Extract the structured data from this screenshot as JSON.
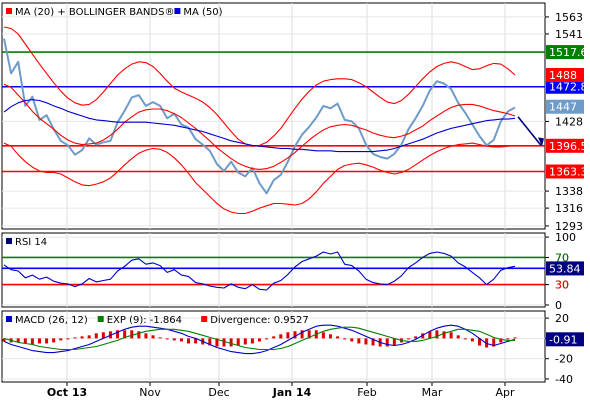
{
  "chart_data": [
    {
      "type": "line",
      "panel": "price",
      "legend": [
        {
          "label": "MA (20) + BOLLINGER BANDS®",
          "color": "#ff0000"
        },
        {
          "label": "MA (50)",
          "color": "#0000cc"
        }
      ],
      "y_ticks": [
        1563,
        1541,
        1428,
        1338,
        1316,
        1293
      ],
      "ylim": [
        1289,
        1581
      ],
      "series": [
        {
          "role": "price",
          "color": "#6e9bc8",
          "values": [
            1535,
            1490,
            1505,
            1448,
            1460,
            1430,
            1436,
            1418,
            1403,
            1397,
            1385,
            1391,
            1406,
            1398,
            1401,
            1403,
            1427,
            1442,
            1459,
            1462,
            1448,
            1453,
            1448,
            1432,
            1438,
            1424,
            1420,
            1405,
            1398,
            1390,
            1373,
            1364,
            1376,
            1362,
            1357,
            1368,
            1348,
            1335,
            1352,
            1359,
            1376,
            1396,
            1411,
            1421,
            1433,
            1448,
            1445,
            1451,
            1430,
            1428,
            1419,
            1398,
            1386,
            1382,
            1380,
            1386,
            1398,
            1418,
            1432,
            1448,
            1468,
            1480,
            1477,
            1470,
            1452,
            1439,
            1424,
            1409,
            1397,
            1404,
            1428,
            1441,
            1446
          ]
        },
        {
          "role": "ma20",
          "color": "#ff0000",
          "values": [
            1476,
            1472,
            1462,
            1452,
            1441,
            1432,
            1425,
            1418,
            1410,
            1404,
            1400,
            1398,
            1399,
            1400,
            1404,
            1410,
            1418,
            1427,
            1434,
            1440,
            1443,
            1444,
            1444,
            1442,
            1438,
            1433,
            1426,
            1419,
            1411,
            1403,
            1394,
            1387,
            1380,
            1374,
            1370,
            1367,
            1366,
            1367,
            1370,
            1375,
            1381,
            1388,
            1396,
            1404,
            1411,
            1417,
            1421,
            1423,
            1424,
            1423,
            1420,
            1417,
            1413,
            1410,
            1408,
            1407,
            1409,
            1412,
            1417,
            1422,
            1429,
            1435,
            1441,
            1446,
            1449,
            1450,
            1450,
            1448,
            1445,
            1442,
            1440,
            1438,
            1435
          ]
        },
        {
          "role": "upper_band",
          "color": "#ff0000",
          "values": [
            1550,
            1548,
            1541,
            1528,
            1515,
            1502,
            1490,
            1478,
            1467,
            1458,
            1452,
            1449,
            1450,
            1456,
            1466,
            1477,
            1488,
            1496,
            1502,
            1505,
            1504,
            1499,
            1490,
            1480,
            1471,
            1466,
            1462,
            1458,
            1453,
            1446,
            1437,
            1426,
            1415,
            1405,
            1399,
            1396,
            1397,
            1401,
            1409,
            1419,
            1432,
            1445,
            1457,
            1467,
            1475,
            1480,
            1482,
            1483,
            1483,
            1482,
            1478,
            1473,
            1466,
            1459,
            1453,
            1451,
            1455,
            1463,
            1473,
            1483,
            1492,
            1499,
            1503,
            1505,
            1503,
            1499,
            1495,
            1496,
            1500,
            1503,
            1502,
            1496,
            1488
          ]
        },
        {
          "role": "lower_band",
          "color": "#ff0000",
          "values": [
            1400,
            1396,
            1385,
            1376,
            1369,
            1364,
            1362,
            1362,
            1360,
            1355,
            1350,
            1346,
            1345,
            1347,
            1350,
            1355,
            1363,
            1372,
            1380,
            1387,
            1391,
            1393,
            1392,
            1388,
            1381,
            1372,
            1361,
            1349,
            1340,
            1331,
            1322,
            1315,
            1311,
            1309,
            1309,
            1312,
            1316,
            1319,
            1322,
            1322,
            1321,
            1320,
            1322,
            1328,
            1337,
            1348,
            1357,
            1366,
            1371,
            1373,
            1374,
            1372,
            1369,
            1365,
            1362,
            1360,
            1362,
            1366,
            1372,
            1378,
            1384,
            1389,
            1393,
            1396,
            1398,
            1399,
            1400,
            1398,
            1396,
            1395,
            1395,
            1396,
            1397
          ]
        },
        {
          "role": "ma50",
          "color": "#0000cc",
          "values": [
            1440,
            1447,
            1452,
            1455,
            1456,
            1455,
            1452,
            1448,
            1445,
            1441,
            1438,
            1435,
            1432,
            1430,
            1429,
            1428,
            1427,
            1427,
            1427,
            1427,
            1427,
            1426,
            1425,
            1424,
            1423,
            1421,
            1419,
            1417,
            1415,
            1412,
            1409,
            1406,
            1403,
            1401,
            1399,
            1397,
            1396,
            1395,
            1394,
            1393,
            1393,
            1392,
            1392,
            1391,
            1390,
            1390,
            1390,
            1389,
            1389,
            1389,
            1389,
            1389,
            1389,
            1390,
            1391,
            1393,
            1396,
            1399,
            1402,
            1405,
            1409,
            1413,
            1416,
            1419,
            1421,
            1423,
            1425,
            1427,
            1429,
            1430,
            1431,
            1431,
            1432
          ]
        }
      ],
      "levels": [
        {
          "value": 1517.6,
          "label": "1517.6",
          "color": "#008000"
        },
        {
          "value": 1472.8,
          "label": "1472.8",
          "color": "#0000ff"
        },
        {
          "value": 1396.5,
          "label": "1396.5",
          "color": "#ff0000"
        },
        {
          "value": 1363.3,
          "label": "1363.3",
          "color": "#ff0000"
        }
      ],
      "tags": [
        {
          "value": 1488,
          "label": "1488",
          "color": "#ff0000"
        },
        {
          "value": 1447,
          "label": "1447",
          "color": "#6e9bc8"
        }
      ],
      "arrow": {
        "from_value": 1434,
        "to_value": 1397,
        "color": "#000080"
      }
    },
    {
      "type": "line",
      "panel": "rsi",
      "legend": [
        {
          "label": "RSI 14",
          "color": "#000080"
        }
      ],
      "y_ticks": [
        100,
        70,
        30,
        0
      ],
      "ylim": [
        -3,
        106
      ],
      "series": [
        {
          "role": "rsi",
          "color": "#0000cc",
          "values": [
            59,
            52,
            50,
            40,
            44,
            38,
            41,
            35,
            32,
            31,
            27,
            31,
            39,
            34,
            36,
            38,
            50,
            57,
            66,
            68,
            60,
            62,
            58,
            48,
            52,
            44,
            42,
            33,
            31,
            28,
            26,
            25,
            31,
            26,
            24,
            30,
            23,
            22,
            32,
            36,
            45,
            56,
            64,
            68,
            72,
            78,
            75,
            78,
            60,
            58,
            50,
            38,
            33,
            31,
            30,
            35,
            43,
            55,
            62,
            70,
            76,
            78,
            76,
            72,
            62,
            56,
            48,
            40,
            30,
            38,
            51,
            55,
            57
          ]
        }
      ],
      "levels": [
        {
          "value": 70,
          "label": "70",
          "color": "#008000"
        },
        {
          "value": 54,
          "label": "",
          "color": "#0000ff"
        },
        {
          "value": 30,
          "label": "30",
          "color": "#ff0000"
        }
      ],
      "tags": [
        {
          "value": 53.84,
          "label": "53.84",
          "color": "#000080"
        }
      ]
    },
    {
      "type": "line",
      "panel": "macd",
      "legend": [
        {
          "label": "MACD (26, 12)",
          "color": "#0000cc"
        },
        {
          "label": "EXP (9): -1.864",
          "color": "#008000"
        },
        {
          "label": "Divergence: 0.9527",
          "color": "#ff0000"
        }
      ],
      "x_labels": [
        "Oct 13",
        "Nov",
        "Dec",
        "Jan 14",
        "Feb",
        "Mar",
        "Apr"
      ],
      "y_ticks": [
        20,
        0,
        -20,
        -40
      ],
      "ylim": [
        -43,
        27
      ],
      "series": [
        {
          "role": "macd",
          "color": "#0000cc",
          "values": [
            -3,
            -6,
            -8,
            -10,
            -12,
            -13,
            -14,
            -14,
            -13,
            -12,
            -10,
            -8,
            -6,
            -3,
            0,
            3,
            6,
            9,
            11,
            12,
            12,
            11,
            10,
            9,
            7,
            5,
            2,
            0,
            -3,
            -6,
            -9,
            -11,
            -13,
            -14,
            -15,
            -15,
            -14,
            -12,
            -9,
            -6,
            -2,
            2,
            6,
            9,
            12,
            13,
            13,
            12,
            10,
            8,
            5,
            2,
            -1,
            -4,
            -6,
            -7,
            -6,
            -4,
            -1,
            3,
            7,
            10,
            12,
            13,
            12,
            9,
            5,
            0,
            -5,
            -7,
            -5,
            -3,
            -1
          ]
        },
        {
          "role": "signal",
          "color": "#008000",
          "values": [
            0,
            -2,
            -4,
            -5,
            -6,
            -8,
            -9,
            -10,
            -11,
            -11,
            -11,
            -10,
            -9,
            -8,
            -6,
            -4,
            -2,
            1,
            3,
            5,
            7,
            8,
            9,
            9,
            9,
            8,
            7,
            5,
            3,
            1,
            -1,
            -3,
            -5,
            -7,
            -9,
            -10,
            -11,
            -11,
            -11,
            -10,
            -8,
            -5,
            -2,
            1,
            4,
            7,
            9,
            10,
            11,
            11,
            10,
            8,
            6,
            4,
            2,
            0,
            -2,
            -3,
            -3,
            -2,
            0,
            2,
            5,
            7,
            9,
            9,
            8,
            7,
            4,
            1,
            -1,
            -2,
            -2
          ]
        }
      ],
      "tags": [
        {
          "value": -0.91,
          "label": "-0.91",
          "color": "#000080"
        }
      ]
    }
  ]
}
